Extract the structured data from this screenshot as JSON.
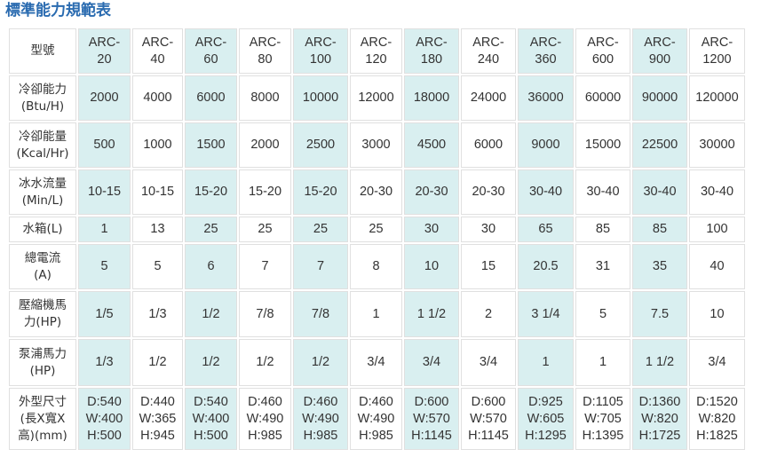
{
  "title": "標準能力規範表",
  "highlight_color": "#d9eff0",
  "header": {
    "label": "型號",
    "models": [
      [
        "ARC-",
        "20"
      ],
      [
        "ARC-",
        "40"
      ],
      [
        "ARC-",
        "60"
      ],
      [
        "ARC-",
        "80"
      ],
      [
        "ARC-",
        "100"
      ],
      [
        "ARC-",
        "120"
      ],
      [
        "ARC-",
        "180"
      ],
      [
        "ARC-",
        "240"
      ],
      [
        "ARC-",
        "360"
      ],
      [
        "ARC-",
        "600"
      ],
      [
        "ARC-",
        "900"
      ],
      [
        "ARC-",
        "1200"
      ]
    ]
  },
  "rows": [
    {
      "label": [
        "冷卻能力",
        "(Btu/H)"
      ],
      "values": [
        [
          "2000"
        ],
        [
          "4000"
        ],
        [
          "6000"
        ],
        [
          "8000"
        ],
        [
          "10000"
        ],
        [
          "12000"
        ],
        [
          "18000"
        ],
        [
          "24000"
        ],
        [
          "36000"
        ],
        [
          "60000"
        ],
        [
          "90000"
        ],
        [
          "120000"
        ]
      ]
    },
    {
      "label": [
        "冷卻能量",
        "(Kcal/Hr)"
      ],
      "values": [
        [
          "500"
        ],
        [
          "1000"
        ],
        [
          "1500"
        ],
        [
          "2000"
        ],
        [
          "2500"
        ],
        [
          "3000"
        ],
        [
          "4500"
        ],
        [
          "6000"
        ],
        [
          "9000"
        ],
        [
          "15000"
        ],
        [
          "22500"
        ],
        [
          "30000"
        ]
      ]
    },
    {
      "label": [
        "冰水流量",
        "(Min/L)"
      ],
      "values": [
        [
          "10-15"
        ],
        [
          "10-15"
        ],
        [
          "15-20"
        ],
        [
          "15-20"
        ],
        [
          "15-20"
        ],
        [
          "20-30"
        ],
        [
          "20-30"
        ],
        [
          "20-30"
        ],
        [
          "30-40"
        ],
        [
          "30-40"
        ],
        [
          "30-40"
        ],
        [
          "30-40"
        ]
      ]
    },
    {
      "label": [
        "水箱(L)"
      ],
      "values": [
        [
          "1"
        ],
        [
          "13"
        ],
        [
          "25"
        ],
        [
          "25"
        ],
        [
          "25"
        ],
        [
          "25"
        ],
        [
          "30"
        ],
        [
          "30"
        ],
        [
          "65"
        ],
        [
          "85"
        ],
        [
          "85"
        ],
        [
          "100"
        ]
      ]
    },
    {
      "label": [
        "總電流",
        "(A)"
      ],
      "values": [
        [
          "5"
        ],
        [
          "5"
        ],
        [
          "6"
        ],
        [
          "7"
        ],
        [
          "7"
        ],
        [
          "8"
        ],
        [
          "10"
        ],
        [
          "15"
        ],
        [
          "20.5"
        ],
        [
          "31"
        ],
        [
          "35"
        ],
        [
          "40"
        ]
      ]
    },
    {
      "label": [
        "壓縮機馬",
        "力(HP)"
      ],
      "values": [
        [
          "1/5"
        ],
        [
          "1/3"
        ],
        [
          "1/2"
        ],
        [
          "7/8"
        ],
        [
          "7/8"
        ],
        [
          "1"
        ],
        [
          "1 1/2"
        ],
        [
          "2"
        ],
        [
          "3 1/4"
        ],
        [
          "5"
        ],
        [
          "7.5"
        ],
        [
          "10"
        ]
      ]
    },
    {
      "label": [
        "泵浦馬力",
        "(HP)"
      ],
      "values": [
        [
          "1/3"
        ],
        [
          "1/2"
        ],
        [
          "1/2"
        ],
        [
          "1/2"
        ],
        [
          "1/2"
        ],
        [
          "3/4"
        ],
        [
          "3/4"
        ],
        [
          "3/4"
        ],
        [
          "1"
        ],
        [
          "1"
        ],
        [
          "1 1/2"
        ],
        [
          "3/4"
        ]
      ]
    },
    {
      "label": [
        "外型尺寸",
        "(長X寬X",
        "高)(mm)"
      ],
      "values": [
        [
          "D:540",
          "W:400",
          "H:500"
        ],
        [
          "D:440",
          "W:365",
          "H:945"
        ],
        [
          "D:540",
          "W:400",
          "H:500"
        ],
        [
          "D:460",
          "W:490",
          "H:985"
        ],
        [
          "D:460",
          "W:490",
          "H:985"
        ],
        [
          "D:460",
          "W:490",
          "H:985"
        ],
        [
          "D:600",
          "W:570",
          "H:1145"
        ],
        [
          "D:600",
          "W:570",
          "H:1145"
        ],
        [
          "D:925",
          "W:605",
          "H:1295"
        ],
        [
          "D:1105",
          "W:705",
          "H:1395"
        ],
        [
          "D:1360",
          "W:820",
          "H:1725"
        ],
        [
          "D:1520",
          "W:820",
          "H:1825"
        ]
      ]
    }
  ]
}
